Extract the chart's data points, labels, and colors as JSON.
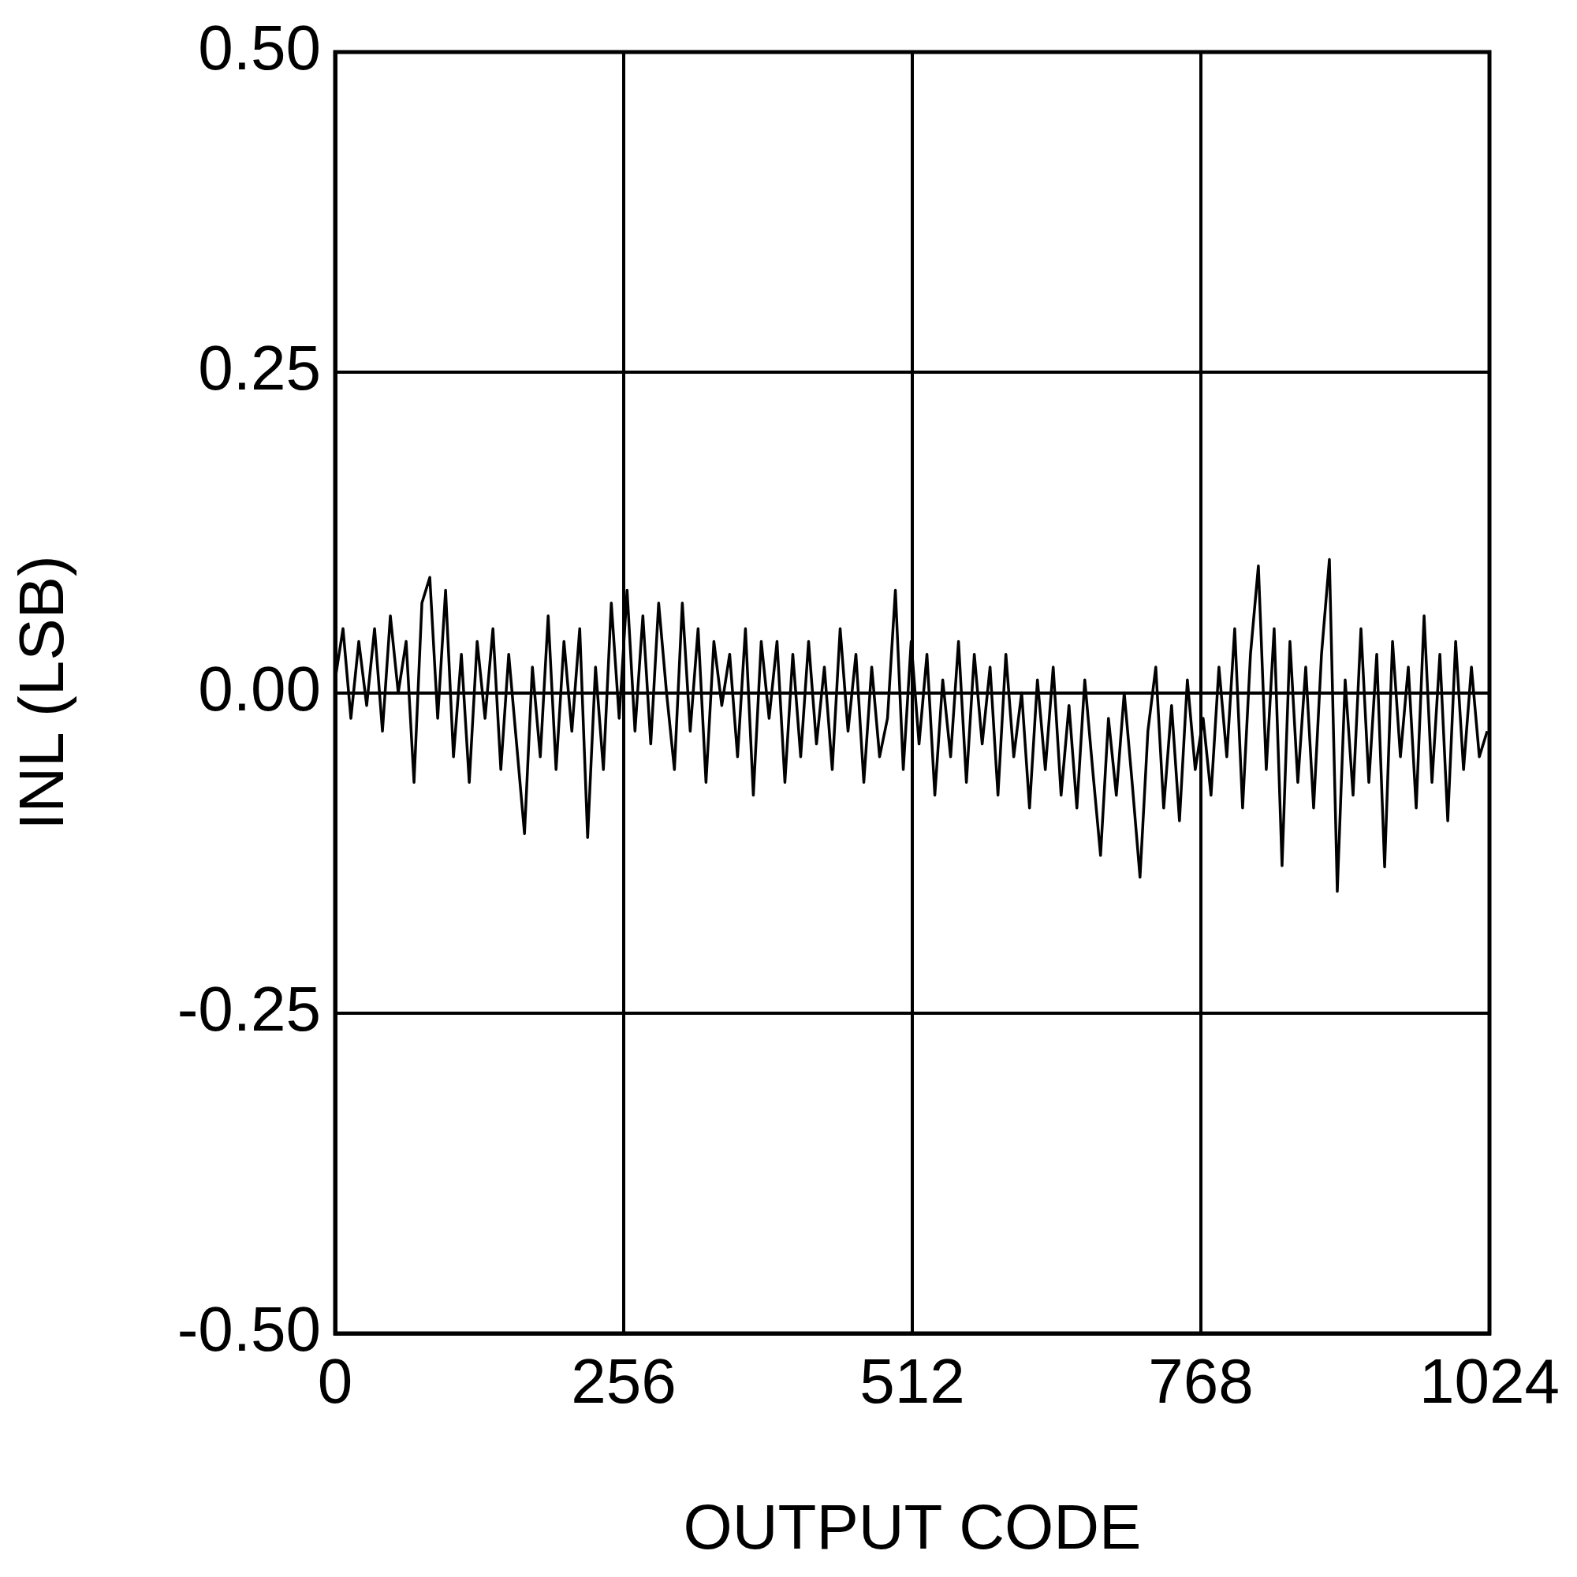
{
  "chart_data": {
    "type": "line",
    "xlabel": "OUTPUT CODE",
    "ylabel": "INL (LSB)",
    "xlim": [
      0,
      1024
    ],
    "xticks": [
      0,
      256,
      512,
      768,
      1024
    ],
    "ylim": [
      -0.5,
      0.5
    ],
    "yticks": [
      {
        "value": -0.5,
        "label": "-0.50"
      },
      {
        "value": -0.25,
        "label": "-0.25"
      },
      {
        "value": 0,
        "label": "0.00"
      },
      {
        "value": 0.25,
        "label": "0.25"
      },
      {
        "value": 0.5,
        "label": "0.50"
      }
    ],
    "grid": true,
    "x": [
      0,
      7,
      14,
      21,
      28,
      35,
      42,
      49,
      56,
      63,
      70,
      77,
      84,
      91,
      98,
      105,
      112,
      119,
      126,
      133,
      140,
      147,
      154,
      161,
      168,
      175,
      182,
      189,
      196,
      203,
      210,
      217,
      224,
      231,
      238,
      245,
      252,
      259,
      266,
      273,
      280,
      287,
      294,
      301,
      308,
      315,
      322,
      329,
      336,
      343,
      350,
      357,
      364,
      371,
      378,
      385,
      392,
      399,
      406,
      413,
      420,
      427,
      434,
      441,
      448,
      455,
      462,
      469,
      476,
      483,
      490,
      497,
      504,
      511,
      518,
      525,
      532,
      539,
      546,
      553,
      560,
      567,
      574,
      581,
      588,
      595,
      602,
      609,
      616,
      623,
      630,
      637,
      644,
      651,
      658,
      665,
      672,
      679,
      686,
      693,
      700,
      707,
      714,
      721,
      728,
      735,
      742,
      749,
      756,
      763,
      770,
      777,
      784,
      791,
      798,
      805,
      812,
      819,
      826,
      833,
      840,
      847,
      854,
      861,
      868,
      875,
      882,
      889,
      896,
      903,
      910,
      917,
      924,
      931,
      938,
      945,
      952,
      959,
      966,
      973,
      980,
      987,
      994,
      1001,
      1008,
      1015,
      1022
    ],
    "series": [
      {
        "color": "#000000",
        "values": [
          0.01,
          0.05,
          -0.02,
          0.04,
          -0.01,
          0.05,
          -0.03,
          0.06,
          0.0,
          0.04,
          -0.07,
          0.07,
          0.09,
          -0.02,
          0.08,
          -0.05,
          0.03,
          -0.07,
          0.04,
          -0.02,
          0.05,
          -0.06,
          0.03,
          -0.04,
          -0.11,
          0.02,
          -0.05,
          0.06,
          -0.06,
          0.04,
          -0.03,
          0.05,
          -0.113,
          0.02,
          -0.06,
          0.07,
          -0.02,
          0.08,
          -0.03,
          0.06,
          -0.04,
          0.07,
          0.0,
          -0.06,
          0.07,
          -0.03,
          0.05,
          -0.07,
          0.04,
          -0.01,
          0.03,
          -0.05,
          0.05,
          -0.08,
          0.04,
          -0.02,
          0.04,
          -0.07,
          0.03,
          -0.05,
          0.04,
          -0.04,
          0.02,
          -0.06,
          0.05,
          -0.03,
          0.03,
          -0.07,
          0.02,
          -0.05,
          -0.02,
          0.08,
          -0.06,
          0.04,
          -0.04,
          0.03,
          -0.08,
          0.01,
          -0.05,
          0.04,
          -0.07,
          0.03,
          -0.04,
          0.02,
          -0.08,
          0.03,
          -0.05,
          0.0,
          -0.09,
          0.01,
          -0.06,
          0.02,
          -0.08,
          -0.01,
          -0.09,
          0.01,
          -0.06,
          -0.127,
          -0.02,
          -0.08,
          0.0,
          -0.07,
          -0.144,
          -0.03,
          0.02,
          -0.09,
          -0.01,
          -0.1,
          0.01,
          -0.06,
          -0.02,
          -0.08,
          0.02,
          -0.05,
          0.05,
          -0.09,
          0.03,
          0.099,
          -0.06,
          0.05,
          -0.135,
          0.04,
          -0.07,
          0.02,
          -0.09,
          0.03,
          0.104,
          -0.155,
          0.01,
          -0.08,
          0.05,
          -0.07,
          0.03,
          -0.136,
          0.04,
          -0.05,
          0.02,
          -0.09,
          0.06,
          -0.07,
          0.03,
          -0.1,
          0.04,
          -0.06,
          0.02,
          -0.05,
          -0.03
        ]
      }
    ]
  }
}
